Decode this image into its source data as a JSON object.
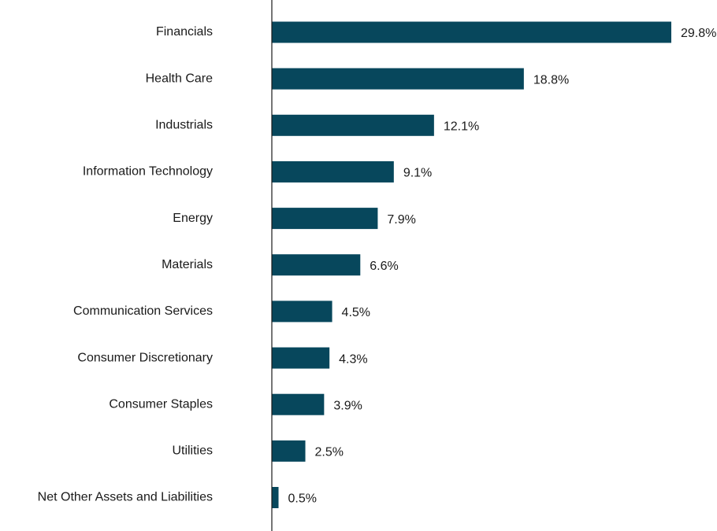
{
  "chart_data": {
    "type": "bar",
    "orientation": "horizontal",
    "categories": [
      "Financials",
      "Health Care",
      "Industrials",
      "Information Technology",
      "Energy",
      "Materials",
      "Communication Services",
      "Consumer Discretionary",
      "Consumer Staples",
      "Utilities",
      "Net Other Assets and Liabilities"
    ],
    "values": [
      29.8,
      18.8,
      12.1,
      9.1,
      7.9,
      6.6,
      4.5,
      4.3,
      3.9,
      2.5,
      0.5
    ],
    "value_labels": [
      "29.8%",
      "18.8%",
      "12.1%",
      "9.1%",
      "7.9%",
      "6.6%",
      "4.5%",
      "4.3%",
      "3.9%",
      "2.5%",
      "0.5%"
    ],
    "title": "",
    "xlabel": "",
    "ylabel": "",
    "xlim": [
      0,
      29.8
    ],
    "grid": false,
    "legend": "none",
    "bar_color": "#07475c",
    "axis_color": "#1a1a1a"
  }
}
